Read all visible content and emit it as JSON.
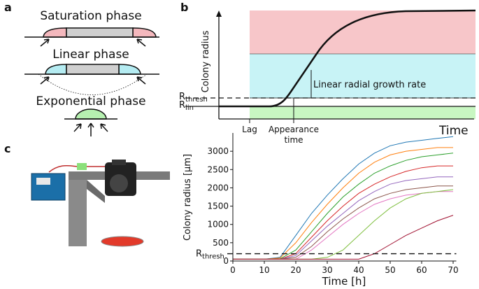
{
  "panel_labels": [
    "a",
    "b",
    "c"
  ],
  "phases": [
    "Saturation phase",
    "Linear phase",
    "Exponential phase"
  ],
  "schematic": {
    "y_label": "Colony radius",
    "x_label": "Time",
    "r_thresh": {
      "main": "R",
      "sub": "thresh"
    },
    "r_lin": {
      "main": "R",
      "sub": "lin"
    },
    "growth_label": "Linear radial growth rate",
    "lag_label": "Lag",
    "appearance_label": [
      "Appearance",
      "time"
    ]
  },
  "chart_data": {
    "type": "line",
    "x_label": "Time [h]",
    "y_label": "Colony radius [μm]",
    "xlim": [
      0,
      71
    ],
    "ylim": [
      0,
      3500
    ],
    "xticks": [
      0,
      10,
      20,
      30,
      40,
      50,
      60,
      70
    ],
    "yticks": [
      0,
      500,
      1000,
      1500,
      2000,
      2500,
      3000
    ],
    "threshold": {
      "value": 200,
      "label": {
        "main": "R",
        "sub": "thresh"
      }
    },
    "x": [
      0,
      10,
      15,
      20,
      25,
      30,
      35,
      40,
      45,
      50,
      55,
      60,
      65,
      70
    ],
    "series": [
      {
        "color": "#1f77b4",
        "values": [
          50,
          50,
          100,
          700,
          1300,
          1800,
          2250,
          2650,
          2950,
          3150,
          3250,
          3300,
          3350,
          3400
        ]
      },
      {
        "color": "#ff7f0e",
        "values": [
          50,
          50,
          80,
          500,
          1050,
          1550,
          2000,
          2400,
          2700,
          2900,
          3000,
          3050,
          3100,
          3100
        ]
      },
      {
        "color": "#2ca02c",
        "values": [
          50,
          50,
          60,
          300,
          800,
          1300,
          1750,
          2100,
          2400,
          2600,
          2750,
          2850,
          2900,
          2950
        ]
      },
      {
        "color": "#d62728",
        "values": [
          50,
          50,
          50,
          200,
          650,
          1100,
          1500,
          1850,
          2100,
          2300,
          2450,
          2550,
          2600,
          2600
        ]
      },
      {
        "color": "#9467bd",
        "values": [
          50,
          50,
          50,
          150,
          550,
          950,
          1300,
          1650,
          1900,
          2100,
          2200,
          2250,
          2300,
          2300
        ]
      },
      {
        "color": "#8c564b",
        "values": [
          50,
          50,
          50,
          100,
          400,
          800,
          1150,
          1450,
          1700,
          1850,
          1950,
          2000,
          2050,
          2050
        ]
      },
      {
        "color": "#e377c2",
        "values": [
          50,
          50,
          50,
          50,
          300,
          650,
          1000,
          1300,
          1550,
          1700,
          1800,
          1850,
          1900,
          1900
        ]
      },
      {
        "color": "#7fbf3f",
        "values": [
          50,
          50,
          50,
          50,
          50,
          100,
          300,
          700,
          1100,
          1450,
          1700,
          1850,
          1900,
          1950
        ]
      },
      {
        "color": "#a01030",
        "values": [
          50,
          50,
          50,
          50,
          50,
          50,
          50,
          50,
          200,
          450,
          700,
          900,
          1100,
          1250
        ]
      }
    ]
  }
}
